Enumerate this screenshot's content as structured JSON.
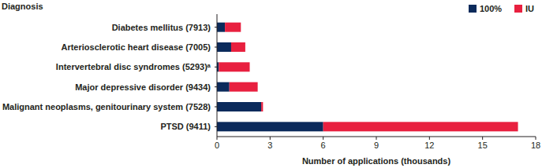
{
  "chart_data": {
    "type": "bar",
    "orientation": "horizontal",
    "stacked": true,
    "ylabel": "Diagnosis",
    "xlabel": "Number of applications (thousands)",
    "categories": [
      "Diabetes mellitus (7913)",
      "Arteriosclerotic heart disease (7005)",
      "Intervertebral disc syndromes (5293)ᵃ",
      "Major depressive disorder (9434)",
      "Malignant neoplasms, genitourinary system (7528)",
      "PTSD (9411)"
    ],
    "series": [
      {
        "name": "100%",
        "color": "#0b2a5b",
        "values": [
          0.45,
          0.8,
          0.1,
          0.7,
          2.5,
          6.0
        ]
      },
      {
        "name": "IU",
        "color": "#e8203f",
        "values": [
          0.9,
          0.8,
          1.75,
          1.6,
          0.1,
          11.0
        ]
      }
    ],
    "xlim": [
      0,
      18
    ],
    "xticks": [
      0,
      3,
      6,
      9,
      12,
      15,
      18
    ],
    "grid": false,
    "legend": "top-right"
  }
}
